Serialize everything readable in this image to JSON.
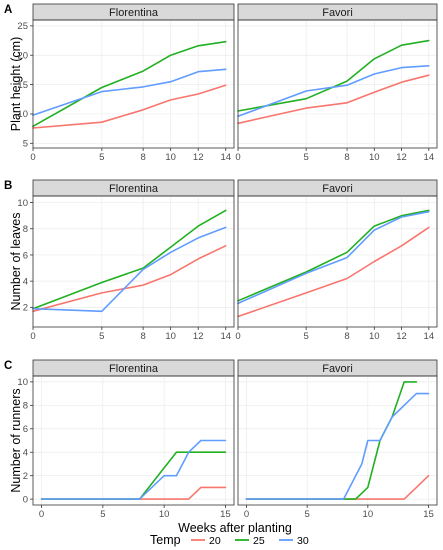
{
  "legend": {
    "title": "Temp",
    "items": [
      {
        "label": "20",
        "color": "#F8766D"
      },
      {
        "label": "25",
        "color": "#22B022"
      },
      {
        "label": "30",
        "color": "#619CFF"
      }
    ]
  },
  "chart_data": [
    {
      "type": "line",
      "panel_letter": "A",
      "ylabel": "Plant height (cm)",
      "xlabel": "",
      "facets": [
        "Florentina",
        "Favori"
      ],
      "x_ticks": [
        0,
        5,
        8,
        10,
        12,
        14
      ],
      "xlim": [
        0,
        14.6
      ],
      "y_ticks": [
        5,
        10,
        15,
        20,
        25
      ],
      "ylim": [
        4.2,
        26
      ],
      "series": [
        {
          "name": "20",
          "color": "#F8766D",
          "facet": "Florentina",
          "x": [
            0,
            5,
            8,
            10,
            12,
            14
          ],
          "values": [
            7.6,
            8.6,
            10.7,
            12.4,
            13.4,
            14.9
          ]
        },
        {
          "name": "25",
          "color": "#22B022",
          "facet": "Florentina",
          "x": [
            0,
            5,
            8,
            10,
            12,
            14
          ],
          "values": [
            7.9,
            14.5,
            17.3,
            20.0,
            21.6,
            22.3
          ]
        },
        {
          "name": "30",
          "color": "#619CFF",
          "facet": "Florentina",
          "x": [
            0,
            5,
            8,
            10,
            12,
            14
          ],
          "values": [
            9.8,
            13.8,
            14.6,
            15.5,
            17.2,
            17.6
          ]
        },
        {
          "name": "20",
          "color": "#F8766D",
          "facet": "Favori",
          "x": [
            0,
            5,
            8,
            10,
            12,
            14
          ],
          "values": [
            8.4,
            11.0,
            11.9,
            13.7,
            15.4,
            16.6
          ]
        },
        {
          "name": "25",
          "color": "#22B022",
          "facet": "Favori",
          "x": [
            0,
            5,
            8,
            10,
            12,
            14
          ],
          "values": [
            10.5,
            12.6,
            15.6,
            19.4,
            21.7,
            22.5
          ]
        },
        {
          "name": "30",
          "color": "#619CFF",
          "facet": "Favori",
          "x": [
            0,
            5,
            8,
            10,
            12,
            14
          ],
          "values": [
            9.6,
            13.9,
            14.9,
            16.8,
            17.9,
            18.2
          ]
        }
      ]
    },
    {
      "type": "line",
      "panel_letter": "B",
      "ylabel": "Number of leaves",
      "xlabel": "",
      "facets": [
        "Florentina",
        "Favori"
      ],
      "x_ticks": [
        0,
        5,
        8,
        10,
        12,
        14
      ],
      "xlim": [
        0,
        14.6
      ],
      "y_ticks": [
        2,
        4,
        6,
        8,
        10
      ],
      "ylim": [
        0.5,
        10.5
      ],
      "series": [
        {
          "name": "20",
          "color": "#F8766D",
          "facet": "Florentina",
          "x": [
            0,
            5,
            8,
            10,
            12,
            14
          ],
          "values": [
            1.7,
            3.1,
            3.7,
            4.5,
            5.7,
            6.7
          ]
        },
        {
          "name": "25",
          "color": "#22B022",
          "facet": "Florentina",
          "x": [
            0,
            5,
            8,
            10,
            12,
            14
          ],
          "values": [
            1.9,
            3.9,
            5.0,
            6.6,
            8.2,
            9.4
          ]
        },
        {
          "name": "30",
          "color": "#619CFF",
          "facet": "Florentina",
          "x": [
            0,
            5,
            8,
            10,
            12,
            14
          ],
          "values": [
            1.9,
            1.7,
            4.9,
            6.2,
            7.3,
            8.1
          ]
        },
        {
          "name": "20",
          "color": "#F8766D",
          "facet": "Favori",
          "x": [
            0,
            5,
            8,
            10,
            12,
            14
          ],
          "values": [
            1.3,
            3.1,
            4.2,
            5.5,
            6.7,
            8.1
          ]
        },
        {
          "name": "25",
          "color": "#22B022",
          "facet": "Favori",
          "x": [
            0,
            5,
            8,
            10,
            12,
            14
          ],
          "values": [
            2.5,
            4.7,
            6.2,
            8.2,
            9.0,
            9.4
          ]
        },
        {
          "name": "30",
          "color": "#619CFF",
          "facet": "Favori",
          "x": [
            0,
            5,
            8,
            10,
            12,
            14
          ],
          "values": [
            2.3,
            4.6,
            5.8,
            7.9,
            8.9,
            9.3
          ]
        }
      ]
    },
    {
      "type": "line",
      "panel_letter": "C",
      "ylabel": "Number of runners",
      "xlabel": "Weeks after planting",
      "facets": [
        "Florentina",
        "Favori"
      ],
      "x_ticks": [
        0,
        5,
        10,
        15
      ],
      "xlim": [
        -0.7,
        15.7
      ],
      "y_ticks": [
        0,
        2,
        4,
        6,
        8,
        10
      ],
      "ylim": [
        -0.5,
        10.5
      ],
      "series": [
        {
          "name": "20",
          "color": "#F8766D",
          "facet": "Florentina",
          "x": [
            0,
            12,
            13,
            15
          ],
          "values": [
            0,
            0,
            1,
            1
          ]
        },
        {
          "name": "25",
          "color": "#22B022",
          "facet": "Florentina",
          "x": [
            0,
            8,
            11,
            12,
            15
          ],
          "values": [
            0,
            0,
            4,
            4,
            4
          ]
        },
        {
          "name": "30",
          "color": "#619CFF",
          "facet": "Florentina",
          "x": [
            0,
            8,
            10,
            11,
            12,
            13,
            15
          ],
          "values": [
            0,
            0,
            2,
            2,
            4,
            5,
            5
          ]
        },
        {
          "name": "20",
          "color": "#F8766D",
          "facet": "Favori",
          "x": [
            0,
            13,
            14,
            15
          ],
          "values": [
            0,
            0,
            1,
            2
          ]
        },
        {
          "name": "25",
          "color": "#22B022",
          "facet": "Favori",
          "x": [
            0,
            9,
            10,
            11,
            12,
            13,
            14
          ],
          "values": [
            0,
            0,
            1,
            5,
            7,
            10,
            10
          ]
        },
        {
          "name": "30",
          "color": "#619CFF",
          "facet": "Favori",
          "x": [
            0,
            8,
            9,
            9.5,
            10,
            11,
            12,
            13,
            14,
            15
          ],
          "values": [
            0,
            0,
            2,
            3,
            5,
            5,
            7,
            8,
            9,
            9
          ]
        }
      ]
    }
  ]
}
